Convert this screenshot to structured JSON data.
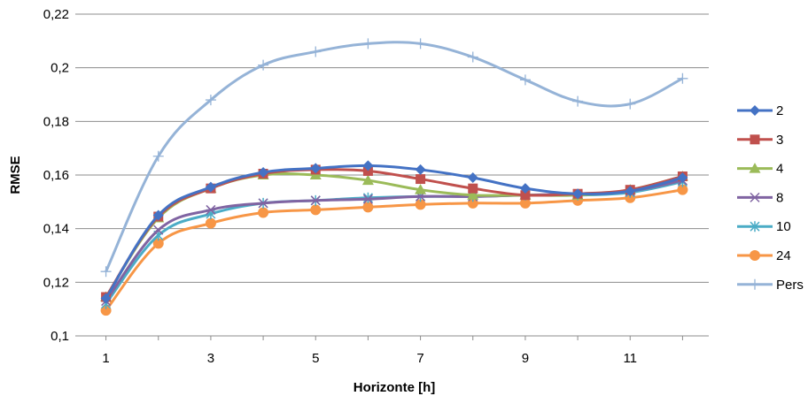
{
  "chart_data": {
    "type": "line",
    "xlabel": "Horizonte [h]",
    "ylabel": "RMSE",
    "xlim": [
      0.5,
      12.5
    ],
    "ylim": [
      0.1,
      0.22
    ],
    "yticks": [
      "0,1",
      "0,12",
      "0,14",
      "0,16",
      "0,18",
      "0,2",
      "0,22"
    ],
    "ytick_values": [
      0.1,
      0.12,
      0.14,
      0.16,
      0.18,
      0.2,
      0.22
    ],
    "xticks": [
      "1",
      "3",
      "5",
      "7",
      "9",
      "11"
    ],
    "xtick_values": [
      1,
      3,
      5,
      7,
      9,
      11
    ],
    "grid": "horizontal",
    "legend_position": "right",
    "x": [
      1,
      2,
      3,
      4,
      5,
      6,
      7,
      8,
      9,
      10,
      11,
      12
    ],
    "series": [
      {
        "name": "2",
        "color": "#4472C4",
        "marker": "diamond",
        "values": [
          0.114,
          0.145,
          0.1555,
          0.161,
          0.1625,
          0.1635,
          0.162,
          0.159,
          0.155,
          0.153,
          0.154,
          0.159
        ]
      },
      {
        "name": "3",
        "color": "#C0504D",
        "marker": "square",
        "values": [
          0.1145,
          0.1445,
          0.155,
          0.1605,
          0.162,
          0.1615,
          0.1585,
          0.155,
          0.1525,
          0.153,
          0.1545,
          0.1595
        ]
      },
      {
        "name": "4",
        "color": "#9BBB59",
        "marker": "triangle",
        "values": [
          0.1145,
          0.144,
          0.155,
          0.16,
          0.16,
          0.158,
          0.1545,
          0.1525,
          0.1525,
          0.1525,
          0.1545,
          0.1595
        ]
      },
      {
        "name": "8",
        "color": "#8064A2",
        "marker": "x",
        "values": [
          0.113,
          0.1395,
          0.147,
          0.1495,
          0.1505,
          0.151,
          0.152,
          0.152,
          0.1525,
          0.153,
          0.154,
          0.158
        ]
      },
      {
        "name": "10",
        "color": "#4BACC6",
        "marker": "asterisk",
        "values": [
          0.112,
          0.1375,
          0.1455,
          0.1495,
          0.1505,
          0.1515,
          0.152,
          0.152,
          0.1525,
          0.1525,
          0.1535,
          0.1575
        ]
      },
      {
        "name": "24",
        "color": "#F79646",
        "marker": "circle",
        "values": [
          0.1095,
          0.1345,
          0.142,
          0.146,
          0.147,
          0.148,
          0.149,
          0.1495,
          0.1495,
          0.1505,
          0.1515,
          0.1545
        ]
      },
      {
        "name": "Pers",
        "color": "#95B3D7",
        "marker": "plus",
        "values": [
          0.124,
          0.167,
          0.188,
          0.201,
          0.206,
          0.209,
          0.209,
          0.204,
          0.1955,
          0.1875,
          0.1865,
          0.196
        ]
      }
    ]
  }
}
